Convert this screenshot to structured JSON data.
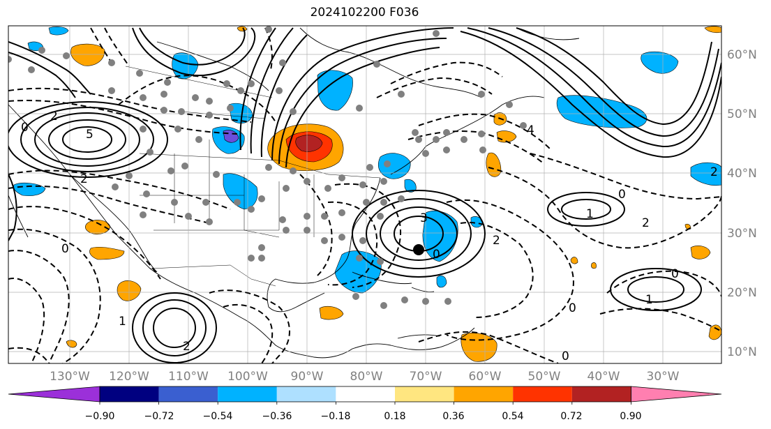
{
  "title": "2024102200 F036",
  "latitude_labels": [
    "60°N",
    "50°N",
    "40°N",
    "30°N",
    "20°N",
    "10°N"
  ],
  "longitude_labels": [
    "130°W",
    "120°W",
    "110°W",
    "100°W",
    "90°W",
    "80°W",
    "70°W",
    "60°W",
    "50°W",
    "40°W",
    "30°W"
  ],
  "colorbar": {
    "ticks": [
      "−0.90",
      "−0.72",
      "−0.54",
      "−0.36",
      "−0.18",
      "0.18",
      "0.36",
      "0.54",
      "0.72",
      "0.90"
    ],
    "colors": [
      "#9b30d9",
      "#000080",
      "#3a5fd0",
      "#00b2ff",
      "#aee0ff",
      "#ffffff",
      "#ffe680",
      "#ffa500",
      "#ff3300",
      "#b22222",
      "#ff7fb0"
    ]
  },
  "contour_labels": [
    "0",
    "2",
    "5",
    "2",
    "0",
    "1",
    "3",
    "0",
    "2",
    "0",
    "2",
    "1",
    "0",
    "2",
    "4",
    "0",
    "0",
    "2",
    "1"
  ],
  "shading_colors": {
    "positive": "#ffa500",
    "strong_positive": "#ff3300",
    "negative": "#00b2ff",
    "strong_negative": "#6a4fdc"
  }
}
